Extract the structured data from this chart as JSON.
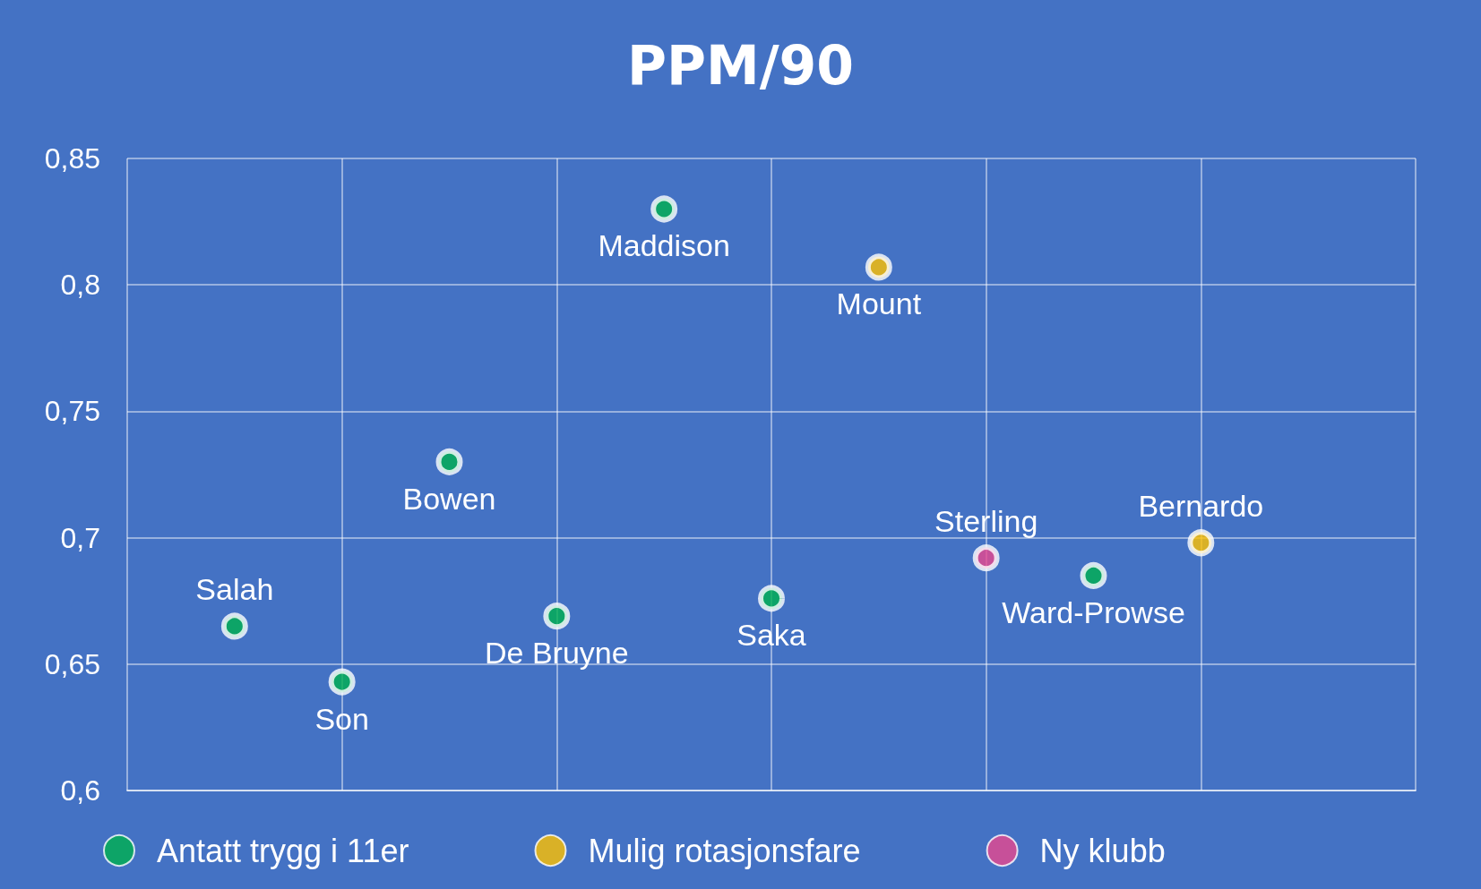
{
  "chart_data": {
    "type": "scatter",
    "title": "PPM/90",
    "categories": [
      null,
      null,
      null,
      null,
      null,
      null,
      null,
      null,
      null,
      null,
      null,
      null,
      null
    ],
    "ylim": [
      0.6,
      0.85
    ],
    "yticks": [
      {
        "value": 0.6,
        "label": "0,6"
      },
      {
        "value": 0.65,
        "label": "0,65"
      },
      {
        "value": 0.7,
        "label": "0,7"
      },
      {
        "value": 0.75,
        "label": "0,75"
      },
      {
        "value": 0.8,
        "label": "0,8"
      },
      {
        "value": 0.85,
        "label": "0,85"
      }
    ],
    "grid": true,
    "legend": "bottom",
    "marker": "circle",
    "series": [
      {
        "name": "Antatt trygg i 11er",
        "color": "#00b050",
        "values": [
          null,
          0.665,
          0.643,
          0.73,
          0.669,
          0.83,
          0.676,
          null,
          null,
          0.685,
          null,
          null,
          null
        ]
      },
      {
        "name": "Mulig rotasjonsfare",
        "color": "#ffc000",
        "values": [
          null,
          null,
          null,
          null,
          null,
          null,
          null,
          0.807,
          null,
          null,
          0.698,
          null,
          null
        ]
      },
      {
        "name": "Ny klubb",
        "color": "#e8478f",
        "values": [
          null,
          null,
          null,
          null,
          null,
          null,
          null,
          null,
          0.692,
          null,
          null,
          null,
          null
        ]
      }
    ],
    "annotations": [
      {
        "text": "Salah",
        "y": 0.665
      },
      {
        "text": "Son",
        "y": 0.643
      },
      {
        "text": "Bowen",
        "y": 0.73
      },
      {
        "text": "De Bruyne",
        "y": 0.669
      },
      {
        "text": "Maddison",
        "y": 0.83
      },
      {
        "text": "Saka",
        "y": 0.676
      },
      {
        "text": "Mount",
        "y": 0.807
      },
      {
        "text": "Sterling",
        "y": 0.692
      },
      {
        "text": "Ward-Prowse",
        "y": 0.685
      },
      {
        "text": "Bernardo",
        "y": 0.698
      }
    ]
  }
}
